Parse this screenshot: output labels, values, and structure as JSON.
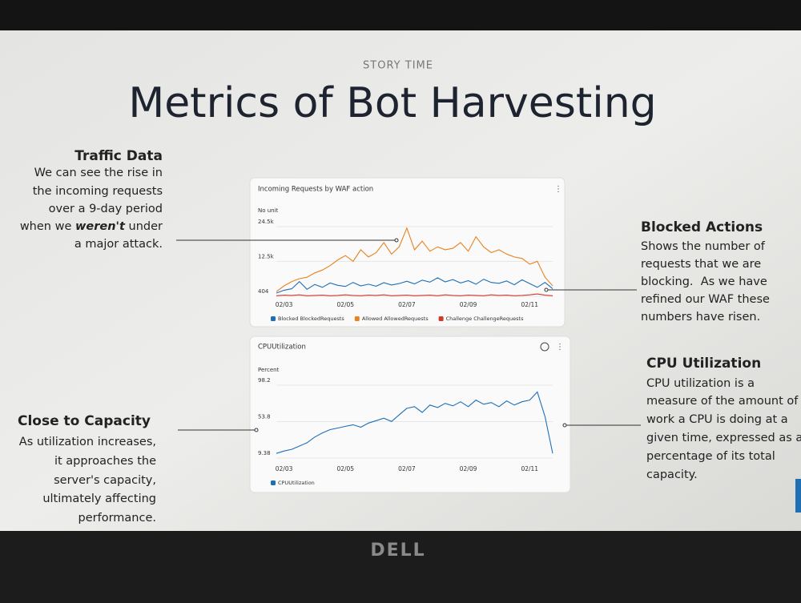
{
  "slide": {
    "kicker": "STORY TIME",
    "title": "Metrics of Bot Harvesting",
    "left_top": {
      "heading": "Traffic Data",
      "lines": [
        "We can see the rise in",
        "the incoming requests",
        "over a 9-day period"
      ],
      "emphasis_line": [
        "when we ",
        "weren't",
        " under"
      ],
      "last_line": "a major attack."
    },
    "right_top": {
      "heading": "Blocked Actions",
      "lines": [
        "Shows the number of",
        "requests that we are",
        "blocking.  As we have",
        "refined our WAF these",
        "numbers have risen."
      ]
    },
    "right_bottom": {
      "heading": "CPU Utilization",
      "lines": [
        "CPU utilization is a",
        "measure of the amount of",
        "work a CPU is doing at a",
        "given time, expressed as a",
        "percentage of its total",
        "capacity."
      ]
    },
    "left_bottom": {
      "heading": "Close to Capacity",
      "lines": [
        "As utilization increases,",
        "it approaches the",
        "server's capacity,",
        "ultimately affecting",
        "performance."
      ]
    },
    "bezel_logo": "DELL"
  },
  "chart_data": [
    {
      "type": "line",
      "title": "Incoming Requests by WAF action",
      "y_label": "No unit",
      "categories": [
        null,
        "02/03",
        null,
        null,
        null,
        null,
        null,
        null,
        null,
        "02/05",
        null,
        null,
        null,
        null,
        null,
        null,
        null,
        "02/07",
        null,
        null,
        null,
        null,
        null,
        null,
        null,
        "02/09",
        null,
        null,
        null,
        null,
        null,
        null,
        null,
        "02/11",
        null,
        null,
        null
      ],
      "ylim": [
        404,
        24500
      ],
      "yticks": [
        404,
        {
          "value": 12500,
          "label": "12.5k"
        },
        {
          "value": 24500,
          "label": "24.5k"
        }
      ],
      "series": [
        {
          "name": "Blocked BlockedRequests",
          "color": "#1f6fb5",
          "values": [
            1500,
            2500,
            3000,
            5500,
            2800,
            4500,
            3500,
            5000,
            4200,
            3800,
            5200,
            4000,
            4600,
            3900,
            5100,
            4300,
            4800,
            5600,
            4700,
            6000,
            5300,
            6800,
            5400,
            6200,
            5000,
            5800,
            4600,
            6300,
            5200,
            4900,
            5700,
            4400,
            6100,
            4800,
            3500,
            5200,
            3000
          ]
        },
        {
          "name": "Allowed AllowedRequests",
          "color": "#e8821e",
          "values": [
            2000,
            4000,
            5500,
            6500,
            7000,
            8500,
            9500,
            11000,
            13000,
            14500,
            12500,
            16500,
            14000,
            15500,
            19000,
            15000,
            17500,
            24000,
            16500,
            19500,
            16000,
            17500,
            16500,
            17000,
            19000,
            16000,
            21000,
            17500,
            15500,
            16500,
            15000,
            14000,
            13500,
            11500,
            12500,
            7000,
            4000
          ]
        },
        {
          "name": "Challenge ChallengeRequests",
          "color": "#d13a2a",
          "values": [
            600,
            800,
            700,
            900,
            600,
            700,
            800,
            600,
            700,
            900,
            700,
            600,
            800,
            700,
            900,
            600,
            700,
            800,
            600,
            700,
            800,
            600,
            900,
            700,
            600,
            800,
            700,
            600,
            900,
            700,
            800,
            600,
            700,
            900,
            1200,
            800,
            600
          ]
        }
      ]
    },
    {
      "type": "line",
      "title": "CPUUtilization",
      "y_label": "Percent",
      "categories": [
        null,
        "02/03",
        null,
        null,
        null,
        null,
        null,
        null,
        null,
        "02/05",
        null,
        null,
        null,
        null,
        null,
        null,
        null,
        "02/07",
        null,
        null,
        null,
        null,
        null,
        null,
        null,
        "02/09",
        null,
        null,
        null,
        null,
        null,
        null,
        null,
        "02/11",
        null,
        null,
        null
      ],
      "ylim": [
        9.38,
        98.2
      ],
      "yticks": [
        9.38,
        53.8,
        98.2
      ],
      "series": [
        {
          "name": "CPUUtilization",
          "color": "#1f6fb5",
          "values": [
            15,
            18,
            20,
            24,
            28,
            35,
            40,
            44,
            46,
            48,
            50,
            47,
            52,
            55,
            58,
            54,
            62,
            70,
            72,
            65,
            74,
            71,
            76,
            73,
            78,
            72,
            80,
            75,
            77,
            72,
            79,
            74,
            78,
            80,
            90,
            60,
            15
          ]
        }
      ]
    }
  ]
}
